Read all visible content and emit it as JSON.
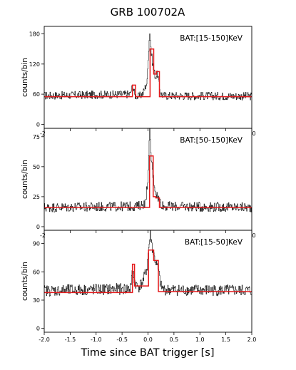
{
  "figure_title": "GRB 100702A",
  "colors": {
    "data": "#111111",
    "model": "#e41a1c"
  },
  "chart_data": [
    {
      "type": "line",
      "panel_label": "BAT:[15-150]KeV",
      "ylabel": "counts/bin",
      "xlabel": "",
      "xlim": [
        -2.0,
        2.0
      ],
      "ylim": [
        -8,
        195
      ],
      "yticks": [
        0,
        60,
        120,
        180
      ],
      "xticks": [
        -2.0,
        -1.5,
        -1.0,
        -0.5,
        0.0,
        0.5,
        1.0,
        1.5,
        2.0
      ],
      "xtick_labels_visible": [
        "-2",
        "0"
      ],
      "grid": false,
      "noise_amplitude": 8,
      "series": [
        {
          "role": "data",
          "x": [
            -2.0,
            -0.35,
            -0.3,
            -0.26,
            -0.22,
            -0.18,
            -0.1,
            -0.02,
            0.0,
            0.03,
            0.06,
            0.1,
            0.14,
            0.18,
            0.22,
            0.26,
            0.3,
            2.0
          ],
          "y": [
            57,
            60,
            78,
            58,
            56,
            55,
            62,
            85,
            135,
            185,
            140,
            110,
            95,
            100,
            70,
            60,
            57,
            56
          ]
        },
        {
          "role": "model",
          "x": [
            -2.0,
            -0.3,
            -0.3,
            -0.24,
            -0.24,
            0.04,
            0.04,
            0.11,
            0.11,
            0.16,
            0.16,
            0.22,
            0.22,
            2.0
          ],
          "y": [
            55,
            55,
            78,
            78,
            55,
            55,
            150,
            150,
            100,
            100,
            105,
            105,
            55,
            55
          ]
        }
      ]
    },
    {
      "type": "line",
      "panel_label": "BAT:[50-150]KeV",
      "ylabel": "counts/bin",
      "xlabel": "",
      "xlim": [
        -2.0,
        2.0
      ],
      "ylim": [
        -3,
        82
      ],
      "yticks": [
        0,
        25,
        50,
        75
      ],
      "xticks": [
        -2.0,
        -1.5,
        -1.0,
        -0.5,
        0.0,
        0.5,
        1.0,
        1.5,
        2.0
      ],
      "xtick_labels_visible": [
        "-2",
        "0"
      ],
      "grid": false,
      "noise_amplitude": 4,
      "series": [
        {
          "role": "data",
          "x": [
            -2.0,
            -0.2,
            -0.05,
            0.0,
            0.03,
            0.06,
            0.1,
            0.14,
            0.18,
            0.22,
            0.26,
            0.3,
            2.0
          ],
          "y": [
            16,
            17,
            20,
            45,
            80,
            55,
            40,
            30,
            25,
            22,
            19,
            17,
            16
          ]
        },
        {
          "role": "model",
          "x": [
            -2.0,
            0.03,
            0.03,
            0.1,
            0.1,
            0.15,
            0.15,
            0.22,
            0.22,
            2.0
          ],
          "y": [
            16,
            16,
            59,
            59,
            25,
            25,
            24,
            24,
            16,
            16
          ]
        }
      ]
    },
    {
      "type": "line",
      "panel_label": "BAT:[15-50]KeV",
      "ylabel": "counts/bin",
      "xlabel": "Time since BAT trigger [s]",
      "xlim": [
        -2.0,
        2.0
      ],
      "ylim": [
        -4,
        104
      ],
      "yticks": [
        0,
        30,
        60,
        90
      ],
      "xticks": [
        -2.0,
        -1.5,
        -1.0,
        -0.5,
        0.0,
        0.5,
        1.0,
        1.5,
        2.0
      ],
      "xtick_labels": [
        "-2.0",
        "-1.5",
        "-1.0",
        "-0.5",
        "0.0",
        "0.5",
        "1.0",
        "1.5",
        "2.0"
      ],
      "grid": false,
      "noise_amplitude": 6,
      "series": [
        {
          "role": "data",
          "x": [
            -2.0,
            -0.35,
            -0.3,
            -0.26,
            -0.22,
            -0.18,
            -0.1,
            -0.02,
            0.0,
            0.04,
            0.08,
            0.12,
            0.16,
            0.2,
            0.24,
            0.3,
            2.0
          ],
          "y": [
            40,
            42,
            60,
            50,
            45,
            44,
            50,
            65,
            80,
            100,
            85,
            75,
            68,
            60,
            45,
            41,
            40
          ]
        },
        {
          "role": "model",
          "x": [
            -2.0,
            -0.3,
            -0.3,
            -0.26,
            -0.26,
            0.01,
            0.01,
            0.11,
            0.11,
            0.2,
            0.2,
            2.0
          ],
          "y": [
            38,
            38,
            68,
            68,
            45,
            45,
            83,
            83,
            72,
            72,
            39,
            39
          ]
        }
      ]
    }
  ]
}
